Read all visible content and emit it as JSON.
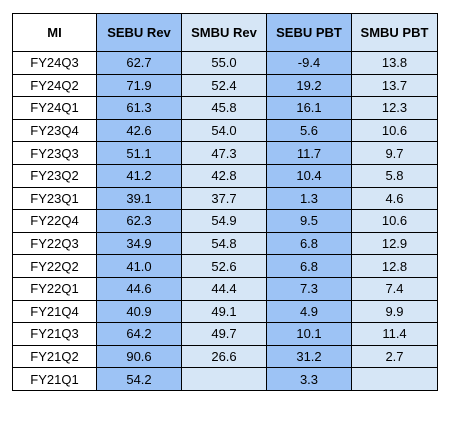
{
  "table": {
    "headers": [
      "MI",
      "SEBU Rev",
      "SMBU Rev",
      "SEBU PBT",
      "SMBU PBT"
    ],
    "rows": [
      [
        "FY24Q3",
        "62.7",
        "55.0",
        "-9.4",
        "13.8"
      ],
      [
        "FY24Q2",
        "71.9",
        "52.4",
        "19.2",
        "13.7"
      ],
      [
        "FY24Q1",
        "61.3",
        "45.8",
        "16.1",
        "12.3"
      ],
      [
        "FY23Q4",
        "42.6",
        "54.0",
        "5.6",
        "10.6"
      ],
      [
        "FY23Q3",
        "51.1",
        "47.3",
        "11.7",
        "9.7"
      ],
      [
        "FY23Q2",
        "41.2",
        "42.8",
        "10.4",
        "5.8"
      ],
      [
        "FY23Q1",
        "39.1",
        "37.7",
        "1.3",
        "4.6"
      ],
      [
        "FY22Q4",
        "62.3",
        "54.9",
        "9.5",
        "10.6"
      ],
      [
        "FY22Q3",
        "34.9",
        "54.8",
        "6.8",
        "12.9"
      ],
      [
        "FY22Q2",
        "41.0",
        "52.6",
        "6.8",
        "12.8"
      ],
      [
        "FY22Q1",
        "44.6",
        "44.4",
        "7.3",
        "7.4"
      ],
      [
        "FY21Q4",
        "40.9",
        "49.1",
        "4.9",
        "9.9"
      ],
      [
        "FY21Q3",
        "64.2",
        "49.7",
        "10.1",
        "11.4"
      ],
      [
        "FY21Q2",
        "90.6",
        "26.6",
        "31.2",
        "2.7"
      ],
      [
        "FY21Q1",
        "54.2",
        "",
        "3.3",
        ""
      ]
    ]
  },
  "colors": {
    "dark_column": "#9dc3f5",
    "light_column": "#d6e6f6",
    "first_column": "#ffffff",
    "border": "#000000"
  }
}
